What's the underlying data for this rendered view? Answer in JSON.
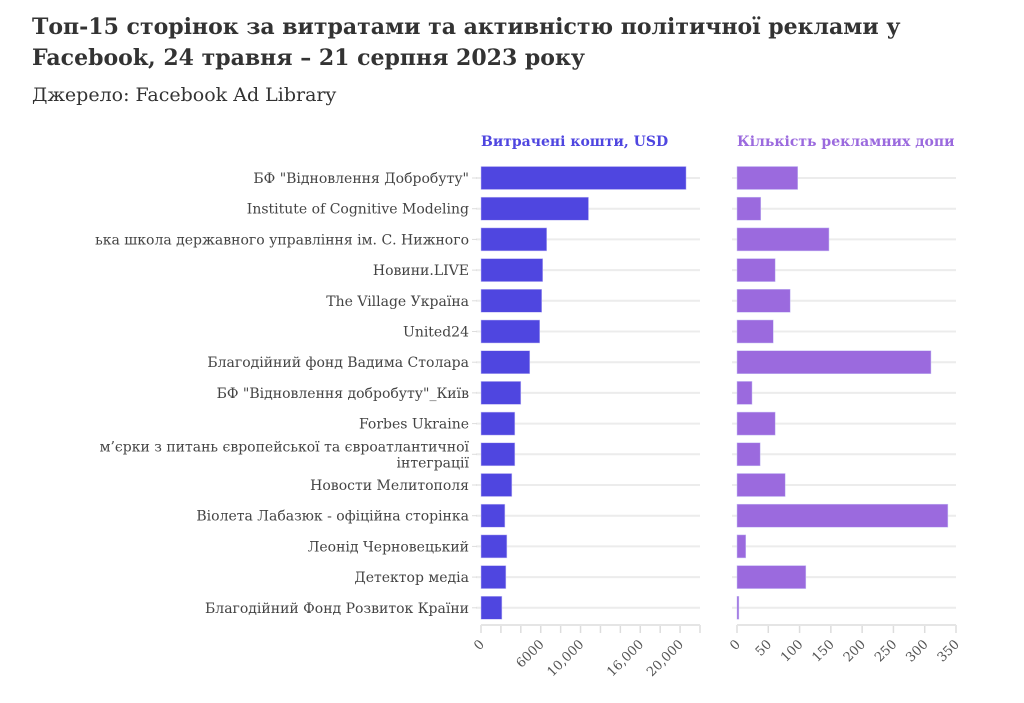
{
  "chart_data": [
    {
      "type": "bar",
      "orientation": "horizontal",
      "title": "Топ-15 сторінок за витратами та активністю політичної реклами у Facebook, 24 травня – 21 серпня 2023 року",
      "subtitle": "Джерело: Facebook Ad Library",
      "panel_title": "Витрачені кошти, USD",
      "color": "#4f46e0",
      "categories": [
        "БФ \"Відновлення Добробуту\"",
        "Institute of Cognitive Modeling",
        "ька школа державного управління ім. С. Нижного",
        "Новини.LIVE",
        "The Village Україна",
        "United24",
        "Благодійний фонд Вадима Столара",
        "БФ \"Відновлення добробуту\"_Київ",
        "Forbes Ukraine",
        "м’єрки з питань європейської та євроатлантичної|інтеграції",
        "Новости Мелитополя",
        "Віолета Лабазюк - офіційна сторінка",
        "Леонід Черновецький",
        "Детектор медіа",
        "Благодійний Фонд Розвиток Країни"
      ],
      "values": [
        20600,
        10800,
        6600,
        6200,
        6100,
        5900,
        4900,
        4000,
        3400,
        3400,
        3100,
        2400,
        2600,
        2500,
        2100
      ],
      "xlim": [
        0,
        22000
      ],
      "tick_step": 2000,
      "tick_labels": [
        {
          "v": 0,
          "t": "0"
        },
        {
          "v": 6000,
          "t": "6000"
        },
        {
          "v": 10000,
          "t": "10,000"
        },
        {
          "v": 16000,
          "t": "16,000"
        },
        {
          "v": 20000,
          "t": "20,000"
        }
      ]
    },
    {
      "type": "bar",
      "orientation": "horizontal",
      "panel_title": "Кількість рекламних допи",
      "color": "#9b6ade",
      "values": [
        97,
        38,
        147,
        61,
        85,
        58,
        310,
        24,
        61,
        37,
        77,
        337,
        14,
        110,
        3
      ],
      "xlim": [
        0,
        350
      ],
      "tick_step": 50,
      "tick_labels": [
        {
          "v": 0,
          "t": "0"
        },
        {
          "v": 50,
          "t": "50"
        },
        {
          "v": 100,
          "t": "100"
        },
        {
          "v": 150,
          "t": "150"
        },
        {
          "v": 200,
          "t": "200"
        },
        {
          "v": 250,
          "t": "250"
        },
        {
          "v": 300,
          "t": "300"
        },
        {
          "v": 350,
          "t": "350"
        }
      ]
    }
  ]
}
